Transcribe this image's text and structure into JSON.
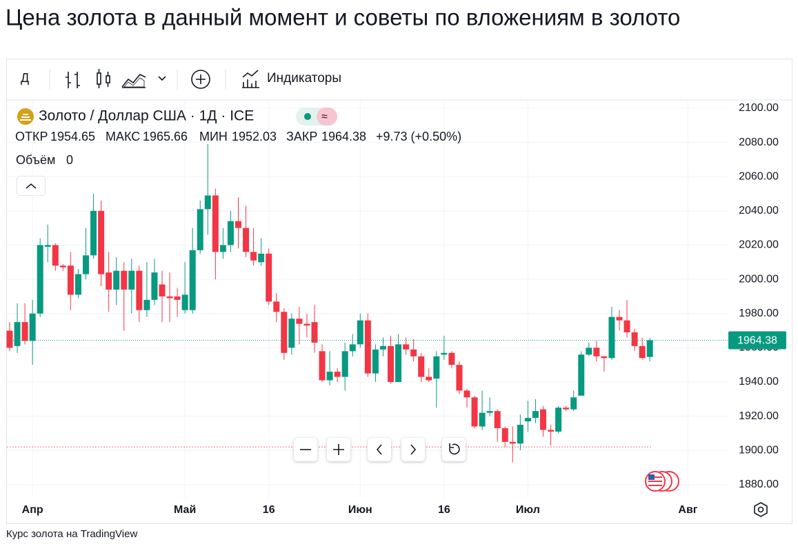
{
  "page_title": "Цена золота в данный момент и советы по вложениям в золото",
  "toolbar": {
    "interval": "Д",
    "indicators": "Индикаторы"
  },
  "footer": "Курс золота на TradingView",
  "chart_data": {
    "type": "candlestick",
    "symbol": "Золото / Доллар США · 1Д · ICE",
    "legend_labels": {
      "open": "ОТКР",
      "high": "МАКС",
      "low": "МИН",
      "close": "ЗАКР"
    },
    "change": "+9.73 (+0.50%)",
    "volume_label": "Объём",
    "volume": 0,
    "up_color": "#089981",
    "down_color": "#f23645",
    "grid": true,
    "reference_line": 1902,
    "categories": [
      null,
      null,
      null,
      "Апр",
      null,
      null,
      null,
      null,
      null,
      null,
      null,
      null,
      null,
      null,
      null,
      null,
      null,
      null,
      null,
      null,
      null,
      null,
      null,
      "Май",
      null,
      null,
      null,
      null,
      null,
      null,
      null,
      null,
      null,
      null,
      "16",
      null,
      null,
      null,
      null,
      null,
      null,
      null,
      null,
      null,
      null,
      null,
      "Июн",
      null,
      null,
      null,
      null,
      null,
      null,
      null,
      null,
      null,
      null,
      "16",
      null,
      null,
      null,
      null,
      null,
      null,
      null,
      null,
      null,
      null,
      "Июл",
      null,
      null,
      null,
      null,
      null,
      null,
      null,
      null,
      null,
      null,
      null,
      null,
      null,
      null,
      null,
      null,
      null,
      null,
      null,
      null,
      "Авг"
    ],
    "open": [
      1970,
      1961,
      1975,
      1964,
      1980,
      2019,
      2020,
      2008,
      2008,
      1991,
      2003,
      2014,
      2040,
      2004,
      1994,
      2005,
      1994,
      2005,
      1982,
      1988,
      1997,
      1990,
      1990,
      1982,
      1982,
      2017,
      2041,
      2049,
      2016,
      2020,
      2034,
      2030,
      2016,
      2010,
      2015,
      1987,
      1981,
      1960,
      1977,
      1974,
      1975,
      1958,
      1941,
      1946,
      1943,
      1958,
      1962,
      1976,
      1945,
      1959,
      1961,
      1940,
      1962,
      1959,
      1955,
      1943,
      1942,
      1956,
      1957,
      1950,
      1935,
      1931,
      1914,
      1922,
      1923,
      1913,
      1905,
      1904,
      1917,
      1919,
      1924,
      1912,
      1911,
      1925,
      1924,
      1932,
      1956,
      1960,
      1955,
      1954,
      1978,
      1976,
      1969,
      1961,
      1954.65,
      null,
      null,
      null,
      null,
      null
    ],
    "high": [
      1975,
      1986,
      1986,
      1988,
      2024,
      2032,
      2021,
      2009,
      2016,
      2006,
      2030,
      2050,
      2046,
      2016,
      2013,
      2010,
      2012,
      2008,
      2010,
      2012,
      2005,
      2004,
      1995,
      2010,
      2030,
      2046,
      2079,
      2053,
      2030,
      2040,
      2048,
      2043,
      2030,
      2024,
      2018,
      1992,
      1983,
      1980,
      1984,
      1980,
      1985,
      1962,
      1958,
      1948,
      1963,
      1968,
      1980,
      1980,
      1962,
      1966,
      1967,
      1968,
      1966,
      1965,
      1957,
      1948,
      1958,
      1967,
      1958,
      1952,
      1936,
      1932,
      1935,
      1931,
      1924,
      1914,
      1914,
      1921,
      1929,
      1930,
      1926,
      1915,
      1926,
      1926,
      1935,
      1958,
      1963,
      1964,
      1955,
      1984,
      1982,
      1988,
      1971,
      1966,
      1965.66,
      null,
      null,
      null,
      null,
      null
    ],
    "low": [
      1958,
      1957,
      1962,
      1950,
      1978,
      2010,
      2005,
      2005,
      1982,
      1989,
      2000,
      2012,
      1996,
      1981,
      1985,
      1970,
      1980,
      1975,
      1978,
      1985,
      1975,
      1975,
      1978,
      1980,
      1980,
      2015,
      2026,
      2000,
      2012,
      2016,
      2018,
      2013,
      2008,
      2008,
      1985,
      1975,
      1953,
      1956,
      1962,
      1966,
      1957,
      1940,
      1938,
      1940,
      1935,
      1955,
      1960,
      1943,
      1940,
      1955,
      1939,
      1940,
      1956,
      1952,
      1940,
      1940,
      1925,
      1953,
      1948,
      1933,
      1925,
      1913,
      1912,
      1920,
      1905,
      1902,
      1893,
      1900,
      1911,
      1916,
      1908,
      1903,
      1910,
      1923,
      1923,
      1932,
      1955,
      1952,
      1946,
      1953,
      1970,
      1966,
      1958,
      1953,
      1952.03,
      null,
      null,
      null,
      null,
      null
    ],
    "close": [
      1960,
      1975,
      1964,
      1980,
      2020,
      2020,
      2008,
      2007,
      1991,
      2003,
      2014,
      2040,
      2003,
      1994,
      2005,
      1994,
      2005,
      1982,
      1988,
      2004,
      1990,
      1989,
      1988,
      1991,
      2017,
      2041,
      2049,
      2016,
      2020,
      2034,
      2030,
      2016,
      2011,
      2015,
      1987,
      1981,
      1957,
      1977,
      1974,
      1973,
      1963,
      1941,
      1946,
      1943,
      1958,
      1962,
      1976,
      1945,
      1959,
      1961,
      1940,
      1962,
      1959,
      1955,
      1943,
      1941,
      1955,
      1957,
      1950,
      1935,
      1931,
      1914,
      1922,
      1923,
      1913,
      1905,
      1904,
      1915,
      1919,
      1923,
      1912,
      1911,
      1925,
      1924,
      1931,
      1956,
      1960,
      1955,
      1954,
      1978,
      1976,
      1969,
      1961,
      1954,
      1964.38,
      null,
      null,
      null,
      null,
      null
    ],
    "ylim": [
      1872.3,
      2104.8
    ],
    "yticks": [
      {
        "value": 1880,
        "label": "1880.00"
      },
      {
        "value": 1900,
        "label": "1900.00"
      },
      {
        "value": 1920,
        "label": "1920.00"
      },
      {
        "value": 1940,
        "label": "1940.00"
      },
      {
        "value": 1960,
        "label": "1960.00"
      },
      {
        "value": 1980,
        "label": "1980.00"
      },
      {
        "value": 2000,
        "label": "2000.00"
      },
      {
        "value": 2020,
        "label": "2020.00"
      },
      {
        "value": 2040,
        "label": "2040.00"
      },
      {
        "value": 2060,
        "label": "2060.00"
      },
      {
        "value": 2080,
        "label": "2080.00"
      },
      {
        "value": 2100,
        "label": "2100.00"
      }
    ]
  }
}
